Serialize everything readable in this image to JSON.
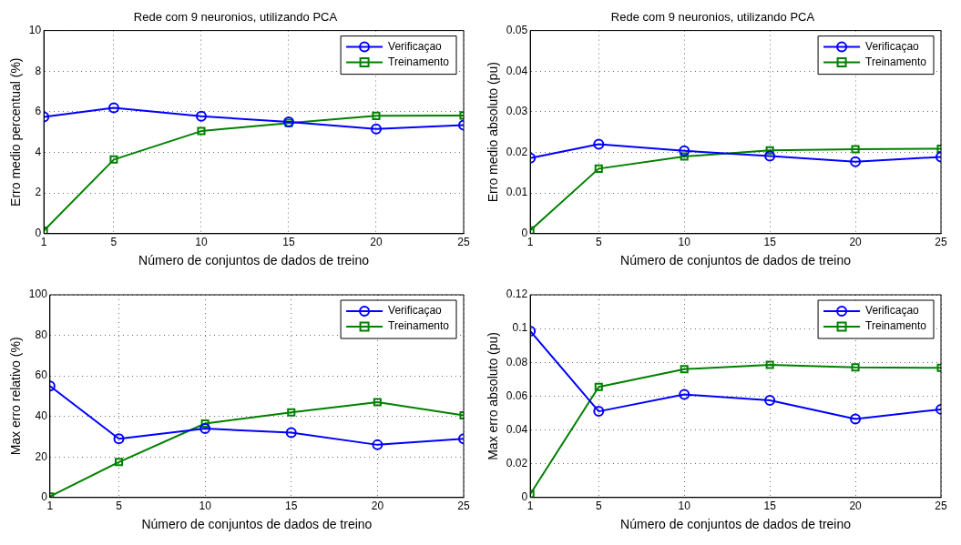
{
  "chart_data": [
    {
      "type": "line",
      "title": "Rede com 9 neuronios, utilizando PCA",
      "xlabel": "Número de conjuntos de dados de treino",
      "ylabel": "Erro medio percentual (%)",
      "x": [
        1,
        5,
        10,
        15,
        20,
        25
      ],
      "xlim": [
        1,
        25
      ],
      "xticks": [
        1,
        5,
        10,
        15,
        20,
        25
      ],
      "ylim": [
        0,
        10
      ],
      "yticks": [
        0,
        2,
        4,
        6,
        8,
        10
      ],
      "grid": true,
      "legend": "top right",
      "line_style": "solid",
      "series": [
        {
          "name": "Verificaçao",
          "color": "#0000ff",
          "marker": "circle",
          "values": [
            5.75,
            6.2,
            5.78,
            5.5,
            5.15,
            5.35
          ]
        },
        {
          "name": "Treinamento",
          "color": "#008000",
          "marker": "square",
          "values": [
            0.15,
            3.65,
            5.05,
            5.45,
            5.8,
            5.82
          ]
        }
      ]
    },
    {
      "type": "line",
      "title": "Rede com 9 neuronios, utilizando PCA",
      "xlabel": "Número de conjuntos de dados de treino",
      "ylabel": "Erro medio absoluto (pu)",
      "x": [
        1,
        5,
        10,
        15,
        20,
        25
      ],
      "xlim": [
        1,
        25
      ],
      "xticks": [
        1,
        5,
        10,
        15,
        20,
        25
      ],
      "ylim": [
        0,
        0.05
      ],
      "yticks": [
        0,
        0.01,
        0.02,
        0.03,
        0.04,
        0.05
      ],
      "grid": true,
      "legend": "top right",
      "line_style": "solid",
      "series": [
        {
          "name": "Verificaçao",
          "color": "#0000ff",
          "marker": "circle",
          "values": [
            0.0186,
            0.022,
            0.0204,
            0.0191,
            0.0177,
            0.0189
          ]
        },
        {
          "name": "Treinamento",
          "color": "#008000",
          "marker": "square",
          "values": [
            0.0008,
            0.016,
            0.019,
            0.0205,
            0.0208,
            0.0209
          ]
        }
      ]
    },
    {
      "type": "line",
      "xlabel": "Número de conjuntos de dados de treino",
      "ylabel": "Max erro relativo (%)",
      "x": [
        1,
        5,
        10,
        15,
        20,
        25
      ],
      "xlim": [
        1,
        25
      ],
      "xticks": [
        1,
        5,
        10,
        15,
        20,
        25
      ],
      "ylim": [
        0,
        100
      ],
      "yticks": [
        0,
        20,
        40,
        60,
        80,
        100
      ],
      "grid": true,
      "legend": "top right",
      "line_style": "solid",
      "series": [
        {
          "name": "Verificaçao",
          "color": "#0000ff",
          "marker": "circle",
          "values": [
            55,
            29,
            34,
            32,
            26,
            29
          ]
        },
        {
          "name": "Treinamento",
          "color": "#008000",
          "marker": "square",
          "values": [
            0.5,
            17.5,
            36.5,
            42,
            47,
            40.5
          ]
        }
      ]
    },
    {
      "type": "line",
      "xlabel": "Número de conjuntos de dados de treino",
      "ylabel": "Max erro absoluto (pu)",
      "x": [
        1,
        5,
        10,
        15,
        20,
        25
      ],
      "xlim": [
        1,
        25
      ],
      "xticks": [
        1,
        5,
        10,
        15,
        20,
        25
      ],
      "ylim": [
        0,
        0.12
      ],
      "yticks": [
        0,
        0.02,
        0.04,
        0.06,
        0.08,
        0.1,
        0.12
      ],
      "grid": true,
      "legend": "top right",
      "line_style": "solid",
      "series": [
        {
          "name": "Verificaçao",
          "color": "#0000ff",
          "marker": "circle",
          "values": [
            0.0985,
            0.051,
            0.061,
            0.0575,
            0.0465,
            0.0522
          ]
        },
        {
          "name": "Treinamento",
          "color": "#008000",
          "marker": "square",
          "values": [
            0.002,
            0.0655,
            0.076,
            0.0785,
            0.077,
            0.0768
          ]
        }
      ]
    }
  ]
}
